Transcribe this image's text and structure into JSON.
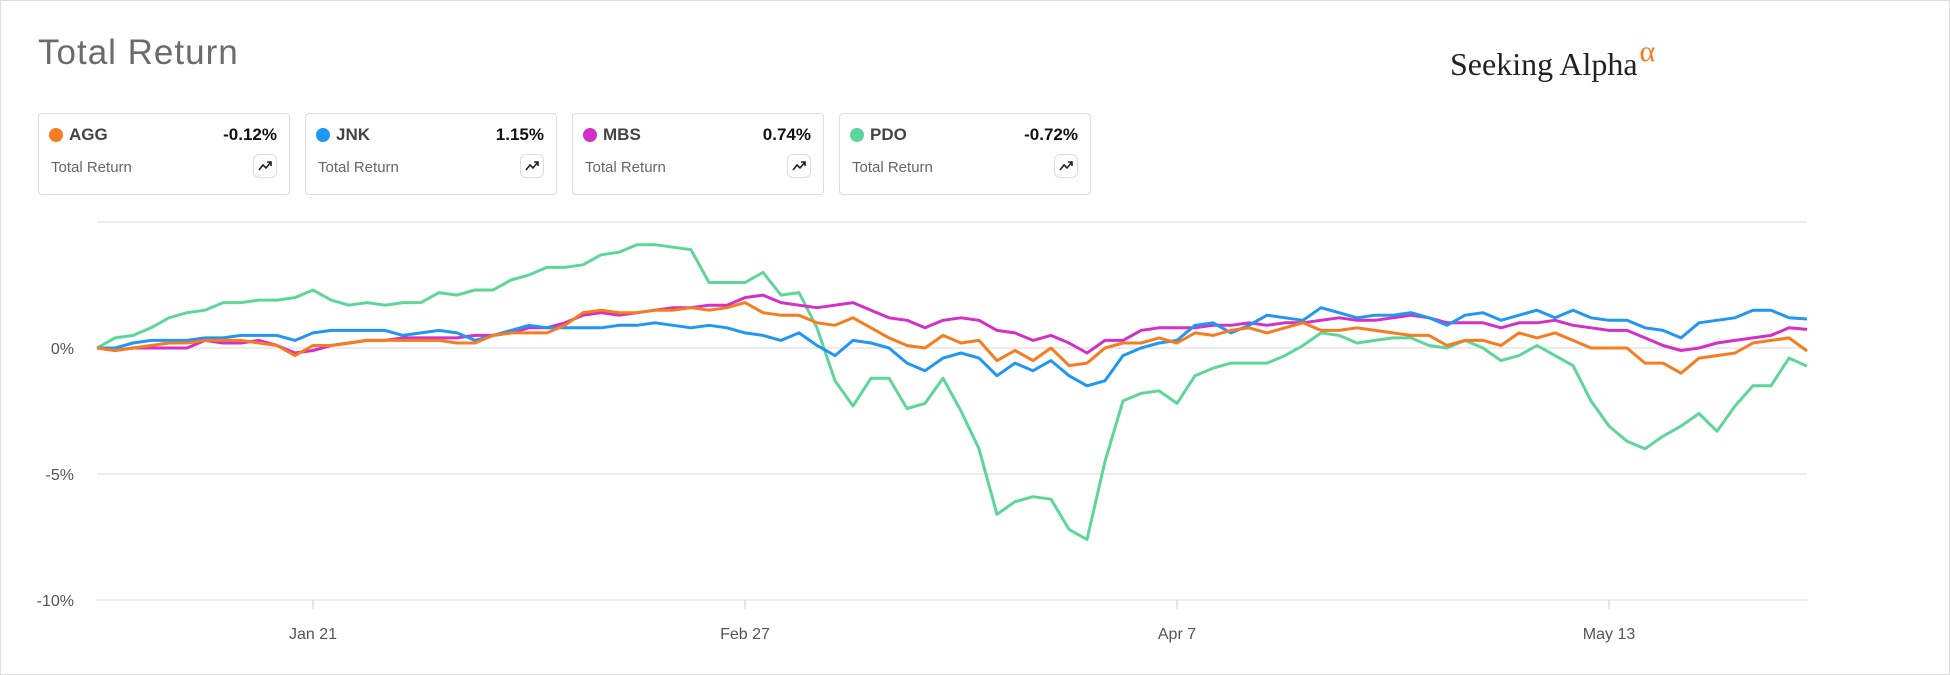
{
  "chart_data": {
    "type": "line",
    "title": "Total Return",
    "brand": "Seeking Alpha",
    "brand_mark": "α",
    "categories": [
      null,
      null,
      null,
      null,
      null,
      null,
      null,
      null,
      null,
      null,
      null,
      null,
      "Jan 21",
      null,
      null,
      null,
      null,
      null,
      null,
      null,
      null,
      null,
      null,
      null,
      null,
      null,
      null,
      null,
      null,
      null,
      null,
      null,
      null,
      null,
      null,
      null,
      "Feb 27",
      null,
      null,
      null,
      null,
      null,
      null,
      null,
      null,
      null,
      null,
      null,
      null,
      null,
      null,
      null,
      null,
      null,
      null,
      null,
      null,
      null,
      null,
      null,
      "Apr 7",
      null,
      null,
      null,
      null,
      null,
      null,
      null,
      null,
      null,
      null,
      null,
      null,
      null,
      null,
      null,
      null,
      null,
      null,
      null,
      null,
      null,
      null,
      null,
      "May 13",
      null,
      null,
      null,
      null,
      null,
      null,
      null,
      null,
      null,
      null,
      null
    ],
    "ylim": [
      -10,
      5
    ],
    "yticks": [
      {
        "value": -10,
        "label": "-10%"
      },
      {
        "value": -5,
        "label": "-5%"
      },
      {
        "value": 0,
        "label": "0%"
      }
    ],
    "grid": true,
    "series": [
      {
        "name": "AGG",
        "color": "#f57c1f",
        "metric": "Total Return",
        "value_label": "-0.12%",
        "values": [
          0,
          -0.1,
          0.0,
          0.1,
          0.2,
          0.2,
          0.3,
          0.3,
          0.3,
          0.2,
          0.1,
          -0.3,
          0.1,
          0.1,
          0.2,
          0.3,
          0.3,
          0.3,
          0.3,
          0.3,
          0.2,
          0.2,
          0.5,
          0.6,
          0.6,
          0.6,
          0.9,
          1.4,
          1.5,
          1.4,
          1.4,
          1.5,
          1.5,
          1.6,
          1.5,
          1.6,
          1.8,
          1.4,
          1.3,
          1.3,
          1.0,
          0.9,
          1.2,
          0.8,
          0.4,
          0.1,
          0.0,
          0.5,
          0.2,
          0.3,
          -0.5,
          -0.1,
          -0.5,
          0.0,
          -0.7,
          -0.6,
          0.0,
          0.2,
          0.2,
          0.4,
          0.2,
          0.6,
          0.5,
          0.7,
          0.8,
          0.6,
          0.8,
          1.0,
          0.7,
          0.7,
          0.8,
          0.7,
          0.6,
          0.5,
          0.5,
          0.1,
          0.3,
          0.3,
          0.1,
          0.6,
          0.4,
          0.6,
          0.3,
          0.0,
          0.0,
          0.0,
          -0.6,
          -0.6,
          -1.0,
          -0.4,
          -0.3,
          -0.2,
          0.2,
          0.3,
          0.4,
          -0.12
        ]
      },
      {
        "name": "JNK",
        "color": "#2196f3",
        "metric": "Total Return",
        "value_label": "1.15%",
        "values": [
          0,
          0.0,
          0.2,
          0.3,
          0.3,
          0.3,
          0.4,
          0.4,
          0.5,
          0.5,
          0.5,
          0.3,
          0.6,
          0.7,
          0.7,
          0.7,
          0.7,
          0.5,
          0.6,
          0.7,
          0.6,
          0.3,
          0.5,
          0.7,
          0.9,
          0.8,
          0.8,
          0.8,
          0.8,
          0.9,
          0.9,
          1.0,
          0.9,
          0.8,
          0.9,
          0.8,
          0.6,
          0.5,
          0.3,
          0.6,
          0.1,
          -0.3,
          0.3,
          0.2,
          0.0,
          -0.6,
          -0.9,
          -0.4,
          -0.2,
          -0.4,
          -1.1,
          -0.6,
          -0.9,
          -0.5,
          -1.1,
          -1.5,
          -1.3,
          -0.3,
          0.0,
          0.2,
          0.3,
          0.9,
          1.0,
          0.6,
          0.9,
          1.3,
          1.2,
          1.1,
          1.6,
          1.4,
          1.2,
          1.3,
          1.3,
          1.4,
          1.2,
          0.9,
          1.3,
          1.4,
          1.1,
          1.3,
          1.5,
          1.2,
          1.5,
          1.2,
          1.1,
          1.1,
          0.8,
          0.7,
          0.4,
          1.0,
          1.1,
          1.2,
          1.5,
          1.5,
          1.2,
          1.15
        ]
      },
      {
        "name": "MBS",
        "color": "#d42fc6",
        "metric": "Total Return",
        "value_label": "0.74%",
        "values": [
          0,
          -0.1,
          0.0,
          0.0,
          0.0,
          0.0,
          0.3,
          0.2,
          0.2,
          0.3,
          0.1,
          -0.2,
          -0.1,
          0.1,
          0.2,
          0.3,
          0.3,
          0.4,
          0.4,
          0.4,
          0.4,
          0.5,
          0.5,
          0.6,
          0.8,
          0.8,
          1.0,
          1.3,
          1.4,
          1.3,
          1.4,
          1.5,
          1.6,
          1.6,
          1.7,
          1.7,
          2.0,
          2.1,
          1.8,
          1.7,
          1.6,
          1.7,
          1.8,
          1.5,
          1.2,
          1.1,
          0.8,
          1.1,
          1.2,
          1.1,
          0.7,
          0.6,
          0.3,
          0.5,
          0.2,
          -0.2,
          0.3,
          0.3,
          0.7,
          0.8,
          0.8,
          0.8,
          0.9,
          0.9,
          1.0,
          0.9,
          1.0,
          1.0,
          1.1,
          1.2,
          1.1,
          1.1,
          1.2,
          1.3,
          1.2,
          1.0,
          1.0,
          1.0,
          0.8,
          1.0,
          1.0,
          1.1,
          0.9,
          0.8,
          0.7,
          0.7,
          0.4,
          0.1,
          -0.1,
          0.0,
          0.2,
          0.3,
          0.4,
          0.5,
          0.8,
          0.74
        ]
      },
      {
        "name": "PDO",
        "color": "#5ed69a",
        "metric": "Total Return",
        "value_label": "-0.72%",
        "values": [
          0,
          0.4,
          0.5,
          0.8,
          1.2,
          1.4,
          1.5,
          1.8,
          1.8,
          1.9,
          1.9,
          2.0,
          2.3,
          1.9,
          1.7,
          1.8,
          1.7,
          1.8,
          1.8,
          2.2,
          2.1,
          2.3,
          2.3,
          2.7,
          2.9,
          3.2,
          3.2,
          3.3,
          3.7,
          3.8,
          4.1,
          4.1,
          4.0,
          3.9,
          2.6,
          2.6,
          2.6,
          3.0,
          2.1,
          2.2,
          0.8,
          -1.3,
          -2.3,
          -1.2,
          -1.2,
          -2.4,
          -2.2,
          -1.2,
          -2.5,
          -4.0,
          -6.6,
          -6.1,
          -5.9,
          -6.0,
          -7.2,
          -7.6,
          -4.5,
          -2.1,
          -1.8,
          -1.7,
          -2.2,
          -1.1,
          -0.8,
          -0.6,
          -0.6,
          -0.6,
          -0.3,
          0.1,
          0.6,
          0.5,
          0.2,
          0.3,
          0.4,
          0.4,
          0.1,
          0.0,
          0.3,
          0.0,
          -0.5,
          -0.3,
          0.1,
          -0.3,
          -0.7,
          -2.1,
          -3.1,
          -3.7,
          -4.0,
          -3.5,
          -3.1,
          -2.6,
          -3.3,
          -2.3,
          -1.5,
          -1.5,
          -0.4,
          -0.72
        ]
      }
    ]
  }
}
